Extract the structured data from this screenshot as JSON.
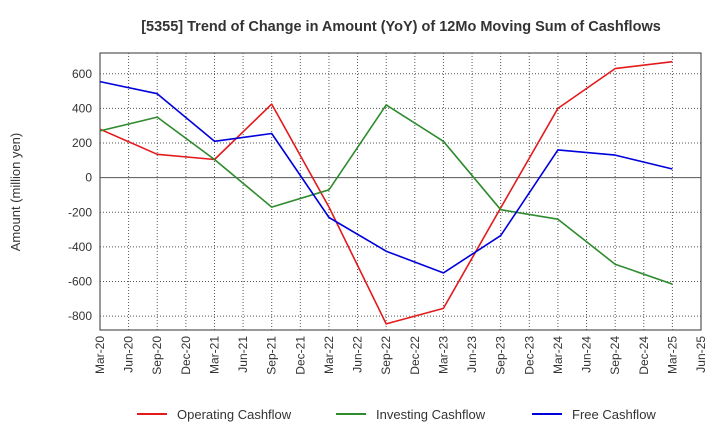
{
  "chart_data": {
    "type": "line",
    "title": "[5355]  Trend of Change in Amount (YoY) of 12Mo Moving Sum of Cashflows",
    "xlabel": "",
    "ylabel": "Amount (million yen)",
    "ylim": [
      -880,
      720
    ],
    "yticks": [
      600,
      400,
      200,
      0,
      -200,
      -400,
      -600,
      -800
    ],
    "grid": true,
    "legend_position": "bottom",
    "x_ticks": [
      "Mar-20",
      "Jun-20",
      "Sep-20",
      "Dec-20",
      "Mar-21",
      "Jun-21",
      "Sep-21",
      "Dec-21",
      "Mar-22",
      "Jun-22",
      "Sep-22",
      "Dec-22",
      "Mar-23",
      "Jun-23",
      "Sep-23",
      "Dec-23",
      "Mar-24",
      "Jun-24",
      "Sep-24",
      "Dec-24",
      "Mar-25",
      "Jun-25"
    ],
    "x": [
      "Mar-20",
      "Sep-20",
      "Mar-21",
      "Sep-21",
      "Mar-22",
      "Sep-22",
      "Mar-23",
      "Sep-23",
      "Mar-24",
      "Sep-24",
      "Mar-25"
    ],
    "series": [
      {
        "name": "Operating Cashflow",
        "color": "#e31a1c",
        "values": [
          280,
          135,
          105,
          425,
          -170,
          -845,
          -755,
          -175,
          400,
          630,
          670
        ]
      },
      {
        "name": "Investing Cashflow",
        "color": "#2e8b2e",
        "values": [
          270,
          350,
          105,
          -170,
          -70,
          420,
          210,
          -185,
          -240,
          -500,
          -615
        ]
      },
      {
        "name": "Free Cashflow",
        "color": "#0000dd",
        "values": [
          555,
          485,
          210,
          255,
          -230,
          -425,
          -550,
          -335,
          160,
          130,
          50
        ]
      }
    ]
  }
}
